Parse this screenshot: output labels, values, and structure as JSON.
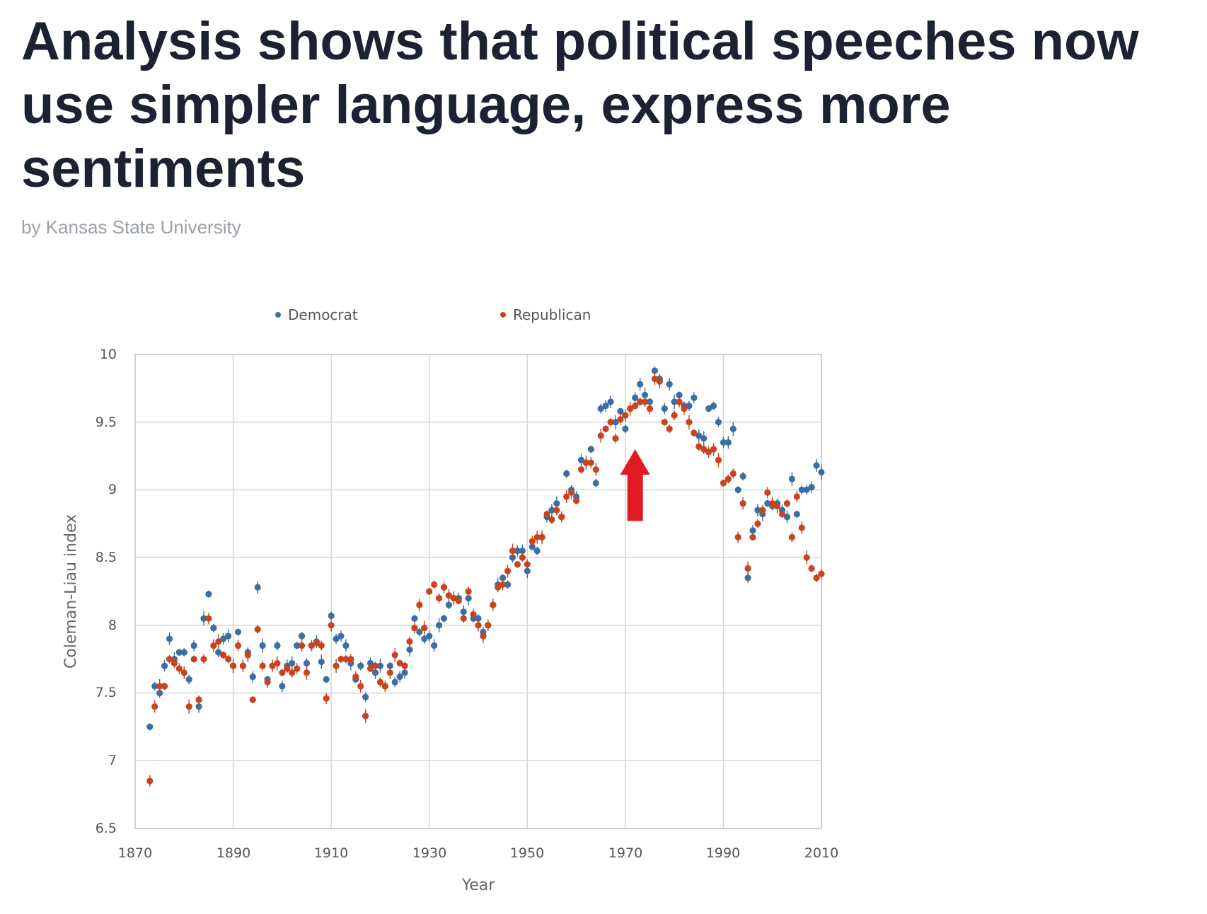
{
  "article": {
    "headline": "Analysis shows that political speeches now use simpler language, express more sentiments",
    "byline": "by Kansas State University"
  },
  "colors": {
    "democrat": "#3a6ea5",
    "republican": "#c8441f",
    "arrow": "#e01b24"
  },
  "annotation": {
    "type": "arrow",
    "direction": "up",
    "x_year": 1972,
    "y_from": 8.77,
    "y_to": 9.3
  },
  "chart_data": {
    "type": "scatter",
    "title": "",
    "xlabel": "Year",
    "ylabel": "Coleman-Liau index",
    "xlim": [
      1870,
      2010
    ],
    "ylim": [
      6.5,
      10
    ],
    "xticks": [
      "1870",
      "1890",
      "1910",
      "1930",
      "1950",
      "1970",
      "1990",
      "2010"
    ],
    "yticks": [
      "6.5",
      "7",
      "7.5",
      "8",
      "8.5",
      "9",
      "9.5",
      "10"
    ],
    "grid": true,
    "error_bars": true,
    "legend": {
      "position": "top",
      "entries": [
        "Democrat",
        "Republican"
      ]
    },
    "series": [
      {
        "name": "Democrat",
        "points": [
          [
            1873,
            7.25
          ],
          [
            1874,
            7.55
          ],
          [
            1875,
            7.5
          ],
          [
            1876,
            7.7
          ],
          [
            1877,
            7.9
          ],
          [
            1878,
            7.75
          ],
          [
            1879,
            7.8
          ],
          [
            1880,
            7.8
          ],
          [
            1881,
            7.6
          ],
          [
            1882,
            7.85
          ],
          [
            1883,
            7.4
          ],
          [
            1884,
            8.05
          ],
          [
            1885,
            8.23
          ],
          [
            1886,
            7.98
          ],
          [
            1887,
            7.8
          ],
          [
            1888,
            7.9
          ],
          [
            1889,
            7.92
          ],
          [
            1890,
            7.7
          ],
          [
            1891,
            7.95
          ],
          [
            1892,
            7.7
          ],
          [
            1893,
            7.8
          ],
          [
            1894,
            7.62
          ],
          [
            1895,
            8.28
          ],
          [
            1896,
            7.85
          ],
          [
            1897,
            7.6
          ],
          [
            1898,
            7.7
          ],
          [
            1899,
            7.85
          ],
          [
            1900,
            7.55
          ],
          [
            1901,
            7.7
          ],
          [
            1902,
            7.72
          ],
          [
            1903,
            7.85
          ],
          [
            1904,
            7.92
          ],
          [
            1905,
            7.72
          ],
          [
            1906,
            7.85
          ],
          [
            1907,
            7.88
          ],
          [
            1908,
            7.73
          ],
          [
            1909,
            7.6
          ],
          [
            1910,
            8.07
          ],
          [
            1911,
            7.9
          ],
          [
            1912,
            7.92
          ],
          [
            1913,
            7.85
          ],
          [
            1914,
            7.72
          ],
          [
            1915,
            7.6
          ],
          [
            1916,
            7.7
          ],
          [
            1917,
            7.47
          ],
          [
            1918,
            7.72
          ],
          [
            1919,
            7.65
          ],
          [
            1920,
            7.7
          ],
          [
            1921,
            7.55
          ],
          [
            1922,
            7.7
          ],
          [
            1923,
            7.58
          ],
          [
            1924,
            7.62
          ],
          [
            1925,
            7.65
          ],
          [
            1926,
            7.82
          ],
          [
            1927,
            8.05
          ],
          [
            1928,
            7.95
          ],
          [
            1929,
            7.9
          ],
          [
            1930,
            7.92
          ],
          [
            1931,
            7.85
          ],
          [
            1932,
            8.0
          ],
          [
            1933,
            8.05
          ],
          [
            1934,
            8.15
          ],
          [
            1935,
            8.2
          ],
          [
            1936,
            8.2
          ],
          [
            1937,
            8.1
          ],
          [
            1938,
            8.2
          ],
          [
            1939,
            8.05
          ],
          [
            1940,
            8.05
          ],
          [
            1941,
            7.95
          ],
          [
            1942,
            8.0
          ],
          [
            1943,
            8.15
          ],
          [
            1944,
            8.3
          ],
          [
            1945,
            8.35
          ],
          [
            1946,
            8.3
          ],
          [
            1947,
            8.5
          ],
          [
            1948,
            8.55
          ],
          [
            1949,
            8.55
          ],
          [
            1950,
            8.4
          ],
          [
            1951,
            8.58
          ],
          [
            1952,
            8.55
          ],
          [
            1953,
            8.65
          ],
          [
            1954,
            8.8
          ],
          [
            1955,
            8.85
          ],
          [
            1956,
            8.9
          ],
          [
            1957,
            8.8
          ],
          [
            1958,
            9.12
          ],
          [
            1959,
            9.0
          ],
          [
            1960,
            8.95
          ],
          [
            1961,
            9.22
          ],
          [
            1962,
            9.2
          ],
          [
            1963,
            9.3
          ],
          [
            1964,
            9.05
          ],
          [
            1965,
            9.6
          ],
          [
            1966,
            9.62
          ],
          [
            1967,
            9.65
          ],
          [
            1968,
            9.5
          ],
          [
            1969,
            9.58
          ],
          [
            1970,
            9.45
          ],
          [
            1971,
            9.6
          ],
          [
            1972,
            9.68
          ],
          [
            1973,
            9.78
          ],
          [
            1974,
            9.7
          ],
          [
            1975,
            9.65
          ],
          [
            1976,
            9.88
          ],
          [
            1977,
            9.82
          ],
          [
            1978,
            9.6
          ],
          [
            1979,
            9.78
          ],
          [
            1980,
            9.65
          ],
          [
            1981,
            9.7
          ],
          [
            1982,
            9.62
          ],
          [
            1983,
            9.62
          ],
          [
            1984,
            9.68
          ],
          [
            1985,
            9.4
          ],
          [
            1986,
            9.38
          ],
          [
            1987,
            9.6
          ],
          [
            1988,
            9.62
          ],
          [
            1989,
            9.5
          ],
          [
            1990,
            9.35
          ],
          [
            1991,
            9.35
          ],
          [
            1992,
            9.45
          ],
          [
            1993,
            9.0
          ],
          [
            1994,
            9.1
          ],
          [
            1995,
            8.35
          ],
          [
            1996,
            8.7
          ],
          [
            1997,
            8.85
          ],
          [
            1998,
            8.82
          ],
          [
            1999,
            8.9
          ],
          [
            2000,
            8.88
          ],
          [
            2001,
            8.9
          ],
          [
            2002,
            8.85
          ],
          [
            2003,
            8.8
          ],
          [
            2004,
            9.08
          ],
          [
            2005,
            8.82
          ],
          [
            2006,
            9.0
          ],
          [
            2007,
            9.0
          ],
          [
            2008,
            9.02
          ],
          [
            2009,
            9.18
          ],
          [
            2010,
            9.13
          ]
        ]
      },
      {
        "name": "Republican",
        "points": [
          [
            1873,
            6.85
          ],
          [
            1874,
            7.4
          ],
          [
            1875,
            7.55
          ],
          [
            1876,
            7.55
          ],
          [
            1877,
            7.75
          ],
          [
            1878,
            7.72
          ],
          [
            1879,
            7.68
          ],
          [
            1880,
            7.65
          ],
          [
            1881,
            7.4
          ],
          [
            1882,
            7.75
          ],
          [
            1883,
            7.45
          ],
          [
            1884,
            7.75
          ],
          [
            1885,
            8.05
          ],
          [
            1886,
            7.85
          ],
          [
            1887,
            7.88
          ],
          [
            1888,
            7.78
          ],
          [
            1889,
            7.75
          ],
          [
            1890,
            7.7
          ],
          [
            1891,
            7.85
          ],
          [
            1892,
            7.7
          ],
          [
            1893,
            7.78
          ],
          [
            1894,
            7.45
          ],
          [
            1895,
            7.97
          ],
          [
            1896,
            7.7
          ],
          [
            1897,
            7.58
          ],
          [
            1898,
            7.7
          ],
          [
            1899,
            7.72
          ],
          [
            1900,
            7.65
          ],
          [
            1901,
            7.68
          ],
          [
            1902,
            7.65
          ],
          [
            1903,
            7.68
          ],
          [
            1904,
            7.85
          ],
          [
            1905,
            7.65
          ],
          [
            1906,
            7.85
          ],
          [
            1907,
            7.87
          ],
          [
            1908,
            7.85
          ],
          [
            1909,
            7.46
          ],
          [
            1910,
            8.0
          ],
          [
            1911,
            7.7
          ],
          [
            1912,
            7.75
          ],
          [
            1913,
            7.75
          ],
          [
            1914,
            7.75
          ],
          [
            1915,
            7.62
          ],
          [
            1916,
            7.55
          ],
          [
            1917,
            7.33
          ],
          [
            1918,
            7.68
          ],
          [
            1919,
            7.7
          ],
          [
            1920,
            7.58
          ],
          [
            1921,
            7.55
          ],
          [
            1922,
            7.65
          ],
          [
            1923,
            7.78
          ],
          [
            1924,
            7.72
          ],
          [
            1925,
            7.7
          ],
          [
            1926,
            7.88
          ],
          [
            1927,
            7.98
          ],
          [
            1928,
            8.15
          ],
          [
            1929,
            7.98
          ],
          [
            1930,
            8.25
          ],
          [
            1931,
            8.3
          ],
          [
            1932,
            8.2
          ],
          [
            1933,
            8.28
          ],
          [
            1934,
            8.22
          ],
          [
            1935,
            8.2
          ],
          [
            1936,
            8.18
          ],
          [
            1937,
            8.05
          ],
          [
            1938,
            8.25
          ],
          [
            1939,
            8.08
          ],
          [
            1940,
            8.0
          ],
          [
            1941,
            7.92
          ],
          [
            1942,
            8.0
          ],
          [
            1943,
            8.15
          ],
          [
            1944,
            8.28
          ],
          [
            1945,
            8.3
          ],
          [
            1946,
            8.4
          ],
          [
            1947,
            8.55
          ],
          [
            1948,
            8.45
          ],
          [
            1949,
            8.5
          ],
          [
            1950,
            8.45
          ],
          [
            1951,
            8.62
          ],
          [
            1952,
            8.65
          ],
          [
            1953,
            8.65
          ],
          [
            1954,
            8.82
          ],
          [
            1955,
            8.78
          ],
          [
            1956,
            8.85
          ],
          [
            1957,
            8.8
          ],
          [
            1958,
            8.95
          ],
          [
            1959,
            8.98
          ],
          [
            1960,
            8.92
          ],
          [
            1961,
            9.15
          ],
          [
            1962,
            9.2
          ],
          [
            1963,
            9.2
          ],
          [
            1964,
            9.15
          ],
          [
            1965,
            9.4
          ],
          [
            1966,
            9.45
          ],
          [
            1967,
            9.5
          ],
          [
            1968,
            9.38
          ],
          [
            1969,
            9.52
          ],
          [
            1970,
            9.55
          ],
          [
            1971,
            9.6
          ],
          [
            1972,
            9.62
          ],
          [
            1973,
            9.65
          ],
          [
            1974,
            9.65
          ],
          [
            1975,
            9.6
          ],
          [
            1976,
            9.82
          ],
          [
            1977,
            9.8
          ],
          [
            1978,
            9.5
          ],
          [
            1979,
            9.45
          ],
          [
            1980,
            9.55
          ],
          [
            1981,
            9.65
          ],
          [
            1982,
            9.6
          ],
          [
            1983,
            9.5
          ],
          [
            1984,
            9.42
          ],
          [
            1985,
            9.32
          ],
          [
            1986,
            9.3
          ],
          [
            1987,
            9.28
          ],
          [
            1988,
            9.3
          ],
          [
            1989,
            9.22
          ],
          [
            1990,
            9.05
          ],
          [
            1991,
            9.08
          ],
          [
            1992,
            9.12
          ],
          [
            1993,
            8.65
          ],
          [
            1994,
            8.9
          ],
          [
            1995,
            8.42
          ],
          [
            1996,
            8.65
          ],
          [
            1997,
            8.75
          ],
          [
            1998,
            8.85
          ],
          [
            1999,
            8.98
          ],
          [
            2000,
            8.9
          ],
          [
            2001,
            8.88
          ],
          [
            2002,
            8.82
          ],
          [
            2003,
            8.9
          ],
          [
            2004,
            8.65
          ],
          [
            2005,
            8.95
          ],
          [
            2006,
            8.72
          ],
          [
            2007,
            8.5
          ],
          [
            2008,
            8.42
          ],
          [
            2009,
            8.35
          ],
          [
            2010,
            8.38
          ]
        ]
      }
    ]
  }
}
